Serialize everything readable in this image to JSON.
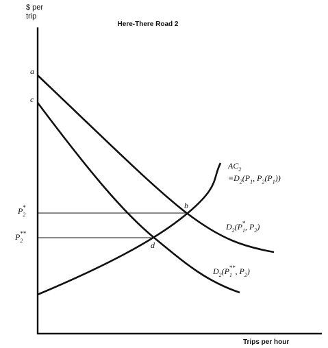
{
  "header": {
    "title": "Here-There Road 2"
  },
  "axes": {
    "y_label": [
      "$ per",
      "trip"
    ],
    "x_label": "Trips per hour"
  },
  "labels": {
    "point_a": [
      {
        "text": "a"
      }
    ],
    "point_c": [
      {
        "text": "c"
      }
    ],
    "point_b": [
      {
        "text": "b"
      }
    ],
    "point_d": [
      {
        "text": "d"
      }
    ],
    "p2_star": [
      {
        "text": "P"
      },
      {
        "text": "2",
        "pos": "sub"
      },
      {
        "text": "*",
        "pos": "sup-back"
      }
    ],
    "p2_double_star": [
      {
        "text": "P"
      },
      {
        "text": "2",
        "pos": "sub"
      },
      {
        "text": "**",
        "pos": "sup-back"
      }
    ],
    "ac2": [
      {
        "text": "AC"
      },
      {
        "text": "2",
        "pos": "sub"
      }
    ],
    "ac2_identity": [
      {
        "text": "≡D"
      },
      {
        "text": "2",
        "pos": "sub"
      },
      {
        "text": "(P"
      },
      {
        "text": "1",
        "pos": "sub"
      },
      {
        "text": ", P"
      },
      {
        "text": "2",
        "pos": "sub"
      },
      {
        "text": "(P"
      },
      {
        "text": "1",
        "pos": "sub"
      },
      {
        "text": "))"
      }
    ],
    "demand_star": [
      {
        "text": "D"
      },
      {
        "text": "2",
        "pos": "sub"
      },
      {
        "text": "(P"
      },
      {
        "text": "1",
        "pos": "sub"
      },
      {
        "text": "*",
        "pos": "sup-back"
      },
      {
        "text": ", P"
      },
      {
        "text": "2",
        "pos": "sub"
      },
      {
        "text": ")"
      }
    ],
    "demand_double_star": [
      {
        "text": "D"
      },
      {
        "text": "2",
        "pos": "sub"
      },
      {
        "text": "(P"
      },
      {
        "text": "1",
        "pos": "sub"
      },
      {
        "text": "**",
        "pos": "sup-back"
      },
      {
        "text": ", P"
      },
      {
        "text": "2",
        "pos": "sub"
      },
      {
        "text": ")"
      }
    ]
  }
}
